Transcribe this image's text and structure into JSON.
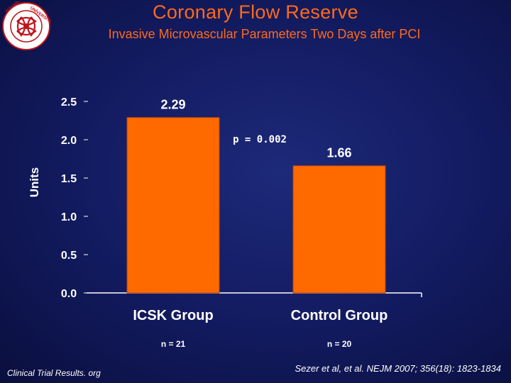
{
  "header": {
    "title": "Coronary Flow Reserve",
    "subtitle": "Invasive Microvascular Parameters Two Days after PCI"
  },
  "logo": {
    "text": "İSTANBUL ÜNİVERSİTESİ"
  },
  "colors": {
    "title": "#ff6a1a",
    "bar": "#ff6a00",
    "bar_stroke": "#b8410a",
    "text": "#ffffff",
    "background": "#121a5e"
  },
  "chart_data": {
    "type": "bar",
    "categories": [
      "ICSK Group",
      "Control Group"
    ],
    "values": [
      2.29,
      1.66
    ],
    "value_labels": [
      "2.29",
      "1.66"
    ],
    "sample_sizes": [
      "n = 21",
      "n = 20"
    ],
    "ylabel": "Units",
    "xlabel": "",
    "ylim": [
      0.0,
      2.5
    ],
    "yticks": [
      "0.0",
      "0.5",
      "1.0",
      "1.5",
      "2.0",
      "2.5"
    ],
    "annotation": "p = 0.002",
    "grid": false
  },
  "footer": {
    "left": "Clinical Trial Results. org",
    "right": "Sezer et al, et al. NEJM 2007; 356(18): 1823-1834"
  }
}
